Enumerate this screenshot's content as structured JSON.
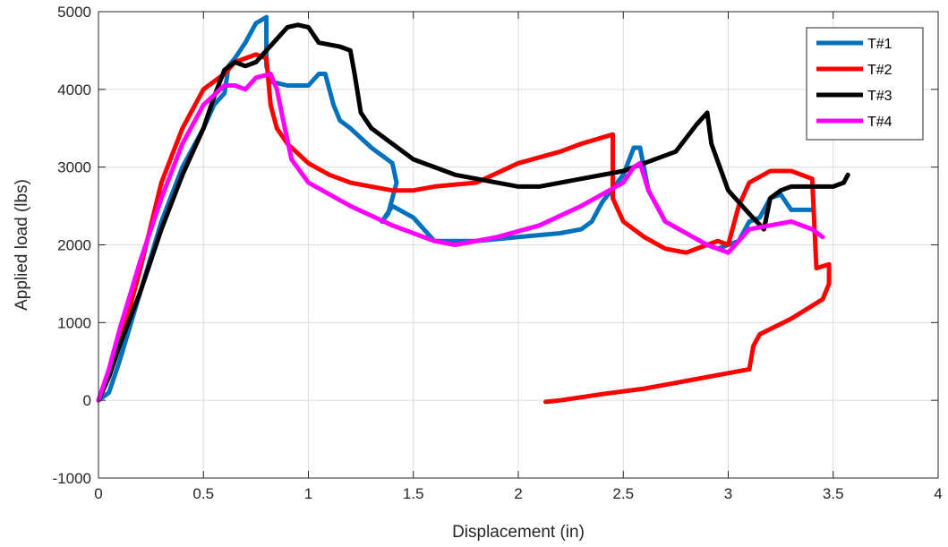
{
  "chart_data": {
    "type": "line",
    "title": "",
    "xlabel": "Displacement (in)",
    "ylabel": "Applied load (lbs)",
    "xlim": [
      0,
      4
    ],
    "ylim": [
      -1000,
      5000
    ],
    "xticks": [
      0,
      0.5,
      1,
      1.5,
      2,
      2.5,
      3,
      3.5,
      4
    ],
    "xtick_labels": [
      "0",
      "0.5",
      "1",
      "1.5",
      "2",
      "2.5",
      "3",
      "3.5",
      "4"
    ],
    "yticks": [
      -1000,
      0,
      1000,
      2000,
      3000,
      4000,
      5000
    ],
    "ytick_labels": [
      "-1000",
      "0",
      "1000",
      "2000",
      "3000",
      "4000",
      "5000"
    ],
    "grid": true,
    "legend_position": "top-right",
    "series": [
      {
        "name": "T#1",
        "color": "#0072BD",
        "points": [
          [
            0,
            0
          ],
          [
            0.05,
            100
          ],
          [
            0.1,
            500
          ],
          [
            0.2,
            1400
          ],
          [
            0.3,
            2300
          ],
          [
            0.4,
            3000
          ],
          [
            0.5,
            3500
          ],
          [
            0.55,
            3800
          ],
          [
            0.6,
            3950
          ],
          [
            0.62,
            4300
          ],
          [
            0.65,
            4400
          ],
          [
            0.7,
            4600
          ],
          [
            0.75,
            4850
          ],
          [
            0.8,
            4930
          ],
          [
            0.8,
            4300
          ],
          [
            0.82,
            4100
          ],
          [
            0.9,
            4050
          ],
          [
            1,
            4050
          ],
          [
            1.05,
            4200
          ],
          [
            1.08,
            4200
          ],
          [
            1.12,
            3800
          ],
          [
            1.15,
            3600
          ],
          [
            1.2,
            3500
          ],
          [
            1.3,
            3250
          ],
          [
            1.4,
            3050
          ],
          [
            1.42,
            2800
          ],
          [
            1.38,
            2400
          ],
          [
            1.35,
            2300
          ],
          [
            1.4,
            2500
          ],
          [
            1.5,
            2350
          ],
          [
            1.6,
            2050
          ],
          [
            1.7,
            2050
          ],
          [
            1.8,
            2050
          ],
          [
            2,
            2100
          ],
          [
            2.2,
            2150
          ],
          [
            2.3,
            2200
          ],
          [
            2.35,
            2300
          ],
          [
            2.4,
            2550
          ],
          [
            2.5,
            2900
          ],
          [
            2.55,
            3250
          ],
          [
            2.58,
            3250
          ],
          [
            2.62,
            2700
          ],
          [
            2.7,
            2300
          ],
          [
            2.8,
            2150
          ],
          [
            2.9,
            2000
          ],
          [
            2.95,
            1950
          ],
          [
            3.05,
            2050
          ],
          [
            3.1,
            2300
          ],
          [
            3.15,
            2350
          ],
          [
            3.2,
            2600
          ],
          [
            3.25,
            2650
          ],
          [
            3.3,
            2450
          ],
          [
            3.4,
            2450
          ]
        ]
      },
      {
        "name": "T#2",
        "color": "#FF0000",
        "points": [
          [
            0,
            0
          ],
          [
            0.05,
            300
          ],
          [
            0.1,
            700
          ],
          [
            0.2,
            1700
          ],
          [
            0.3,
            2800
          ],
          [
            0.4,
            3500
          ],
          [
            0.5,
            4000
          ],
          [
            0.6,
            4200
          ],
          [
            0.65,
            4350
          ],
          [
            0.7,
            4400
          ],
          [
            0.75,
            4450
          ],
          [
            0.8,
            4400
          ],
          [
            0.82,
            3800
          ],
          [
            0.85,
            3500
          ],
          [
            0.9,
            3300
          ],
          [
            1,
            3050
          ],
          [
            1.1,
            2900
          ],
          [
            1.2,
            2800
          ],
          [
            1.3,
            2750
          ],
          [
            1.4,
            2700
          ],
          [
            1.5,
            2700
          ],
          [
            1.6,
            2750
          ],
          [
            1.8,
            2800
          ],
          [
            2,
            3050
          ],
          [
            2.2,
            3200
          ],
          [
            2.3,
            3300
          ],
          [
            2.45,
            3420
          ],
          [
            2.45,
            2600
          ],
          [
            2.5,
            2300
          ],
          [
            2.6,
            2100
          ],
          [
            2.7,
            1950
          ],
          [
            2.8,
            1900
          ],
          [
            2.9,
            2000
          ],
          [
            2.95,
            2050
          ],
          [
            3,
            2000
          ],
          [
            3.05,
            2500
          ],
          [
            3.1,
            2800
          ],
          [
            3.2,
            2950
          ],
          [
            3.3,
            2950
          ],
          [
            3.4,
            2850
          ],
          [
            3.42,
            1700
          ],
          [
            3.48,
            1750
          ],
          [
            3.48,
            1500
          ],
          [
            3.45,
            1300
          ],
          [
            3.3,
            1050
          ],
          [
            3.15,
            850
          ],
          [
            3.12,
            700
          ],
          [
            3.1,
            400
          ],
          [
            3,
            350
          ],
          [
            2.8,
            250
          ],
          [
            2.6,
            150
          ],
          [
            2.4,
            80
          ],
          [
            2.2,
            0
          ],
          [
            2.13,
            -20
          ]
        ]
      },
      {
        "name": "T#3",
        "color": "#000000",
        "points": [
          [
            0,
            0
          ],
          [
            0.05,
            300
          ],
          [
            0.1,
            700
          ],
          [
            0.2,
            1400
          ],
          [
            0.3,
            2200
          ],
          [
            0.4,
            2900
          ],
          [
            0.5,
            3500
          ],
          [
            0.55,
            3900
          ],
          [
            0.6,
            4250
          ],
          [
            0.65,
            4350
          ],
          [
            0.7,
            4300
          ],
          [
            0.75,
            4350
          ],
          [
            0.8,
            4500
          ],
          [
            0.9,
            4800
          ],
          [
            0.95,
            4830
          ],
          [
            1,
            4800
          ],
          [
            1.05,
            4600
          ],
          [
            1.15,
            4550
          ],
          [
            1.2,
            4500
          ],
          [
            1.22,
            4200
          ],
          [
            1.25,
            3700
          ],
          [
            1.3,
            3500
          ],
          [
            1.4,
            3300
          ],
          [
            1.5,
            3100
          ],
          [
            1.7,
            2900
          ],
          [
            2,
            2750
          ],
          [
            2.1,
            2750
          ],
          [
            2.3,
            2850
          ],
          [
            2.5,
            2950
          ],
          [
            2.6,
            3050
          ],
          [
            2.75,
            3200
          ],
          [
            2.85,
            3550
          ],
          [
            2.9,
            3700
          ],
          [
            2.92,
            3300
          ],
          [
            3,
            2700
          ],
          [
            3.1,
            2400
          ],
          [
            3.17,
            2200
          ],
          [
            3.2,
            2600
          ],
          [
            3.25,
            2700
          ],
          [
            3.3,
            2750
          ],
          [
            3.5,
            2750
          ],
          [
            3.55,
            2800
          ],
          [
            3.57,
            2900
          ]
        ]
      },
      {
        "name": "T#4",
        "color": "#FF00FF",
        "points": [
          [
            0,
            0
          ],
          [
            0.05,
            400
          ],
          [
            0.1,
            900
          ],
          [
            0.2,
            1800
          ],
          [
            0.3,
            2600
          ],
          [
            0.4,
            3300
          ],
          [
            0.5,
            3800
          ],
          [
            0.6,
            4050
          ],
          [
            0.65,
            4050
          ],
          [
            0.7,
            4000
          ],
          [
            0.75,
            4150
          ],
          [
            0.82,
            4200
          ],
          [
            0.85,
            4000
          ],
          [
            0.88,
            3600
          ],
          [
            0.92,
            3100
          ],
          [
            1,
            2800
          ],
          [
            1.2,
            2500
          ],
          [
            1.4,
            2250
          ],
          [
            1.6,
            2050
          ],
          [
            1.7,
            2000
          ],
          [
            1.9,
            2100
          ],
          [
            2.1,
            2250
          ],
          [
            2.3,
            2500
          ],
          [
            2.5,
            2800
          ],
          [
            2.55,
            3000
          ],
          [
            2.58,
            3050
          ],
          [
            2.62,
            2700
          ],
          [
            2.7,
            2300
          ],
          [
            2.8,
            2150
          ],
          [
            2.9,
            2000
          ],
          [
            3,
            1900
          ],
          [
            3.05,
            2050
          ],
          [
            3.1,
            2200
          ],
          [
            3.2,
            2250
          ],
          [
            3.3,
            2300
          ],
          [
            3.4,
            2200
          ],
          [
            3.45,
            2100
          ]
        ]
      }
    ]
  }
}
